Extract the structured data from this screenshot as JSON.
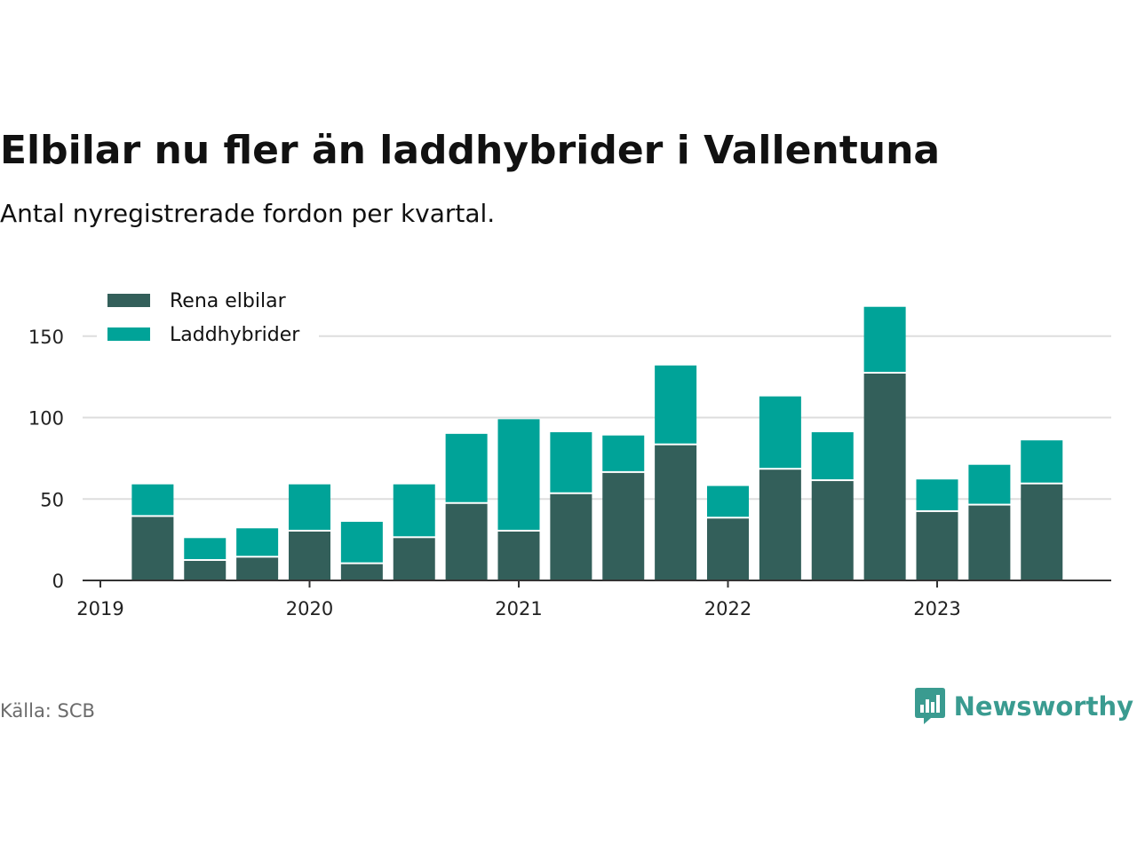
{
  "header": {
    "title": "Elbilar nu fler än laddhybrider i Vallentuna",
    "subtitle": "Antal nyregistrerade fordon per kvartal."
  },
  "footer": {
    "source": "Källa: SCB",
    "brand": "Newsworthy",
    "brand_color": "#3a9b90"
  },
  "icons": {
    "brand_logo": "newsworthy-logo-icon"
  },
  "chart_data": {
    "type": "bar",
    "stacked": true,
    "title": "Elbilar nu fler än laddhybrider i Vallentuna",
    "subtitle": "Antal nyregistrerade fordon per kvartal.",
    "xlabel": "",
    "ylabel": "",
    "ylim": [
      0,
      165
    ],
    "yticks": [
      0,
      50,
      100,
      150
    ],
    "x_start": 2019.0,
    "x_end": 2023.8,
    "xticks": [
      2019,
      2020,
      2021,
      2022,
      2023
    ],
    "xtick_labels": [
      "2019",
      "2020",
      "2021",
      "2022",
      "2023"
    ],
    "categories": [
      "2019 Q2",
      "2019 Q3",
      "2019 Q4",
      "2020 Q1",
      "2020 Q2",
      "2020 Q3",
      "2020 Q4",
      "2021 Q1",
      "2021 Q2",
      "2021 Q3",
      "2021 Q4",
      "2022 Q1",
      "2022 Q2",
      "2022 Q3",
      "2022 Q4",
      "2023 Q1",
      "2023 Q2",
      "2023 Q3"
    ],
    "x": [
      2019.25,
      2019.5,
      2019.75,
      2020.0,
      2020.25,
      2020.5,
      2020.75,
      2021.0,
      2021.25,
      2021.5,
      2021.75,
      2022.0,
      2022.25,
      2022.5,
      2022.75,
      2023.0,
      2023.25,
      2023.5
    ],
    "series": [
      {
        "name": "Rena elbilar",
        "color": "#335f5a",
        "values": [
          39,
          12,
          14,
          30,
          10,
          26,
          47,
          30,
          53,
          66,
          83,
          38,
          68,
          61,
          127,
          42,
          46,
          59
        ]
      },
      {
        "name": "Laddhybrider",
        "color": "#00a398",
        "values": [
          20,
          14,
          18,
          29,
          26,
          33,
          43,
          69,
          38,
          23,
          49,
          20,
          45,
          30,
          41,
          20,
          25,
          27
        ]
      }
    ],
    "legend": {
      "position": "top-left",
      "entries": [
        "Rena elbilar",
        "Laddhybrider"
      ]
    },
    "grid": true
  }
}
